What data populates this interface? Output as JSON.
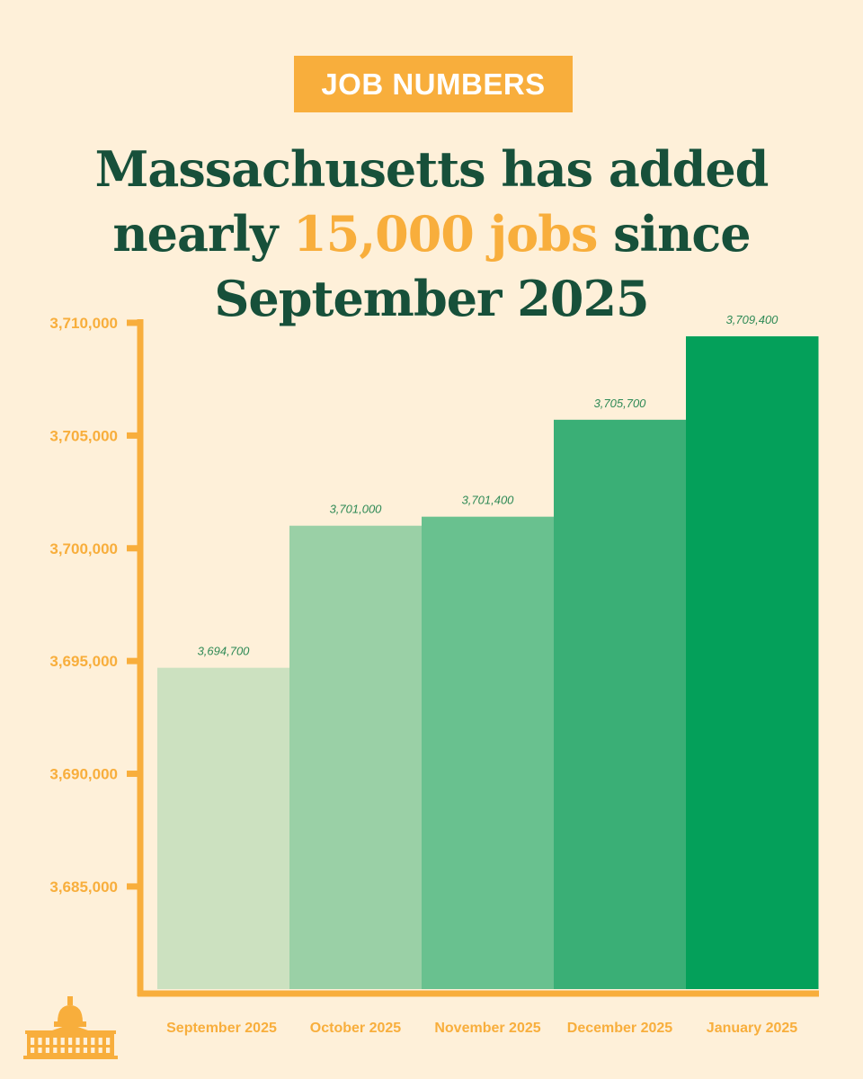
{
  "header": {
    "badge": "JOB NUMBERS",
    "title_line1": "Massachusetts has added",
    "title_line2_pre": "nearly ",
    "title_line2_highlight": "15,000 jobs",
    "title_line2_post": " since",
    "title_line3": "September 2025"
  },
  "colors": {
    "background": "#fef0d9",
    "accent": "#f8ae3c",
    "title": "#17503a",
    "label": "#2f8a56",
    "bars": [
      "#cce1c0",
      "#9ad0a6",
      "#69c18f",
      "#3aaf76",
      "#04a05a"
    ]
  },
  "icons": {
    "logo": "state-house-icon"
  },
  "chart_data": {
    "type": "bar",
    "categories": [
      "September 2025",
      "October 2025",
      "November 2025",
      "December 2025",
      "January 2025"
    ],
    "values": [
      3694700,
      3701000,
      3701400,
      3705700,
      3709400
    ],
    "value_labels": [
      "3,694,700",
      "3,701,000",
      "3,701,400",
      "3,705,700",
      "3,709,400"
    ],
    "yticks": [
      3685000,
      3690000,
      3695000,
      3700000,
      3705000,
      3710000
    ],
    "ytick_labels": [
      "3,685,000",
      "3,690,000",
      "3,695,000",
      "3,700,000",
      "3,705,000",
      "3,710,000"
    ],
    "ylim": [
      3680450,
      3710000
    ],
    "grid": false,
    "legend": "none",
    "title": "",
    "xlabel": "",
    "ylabel": ""
  }
}
